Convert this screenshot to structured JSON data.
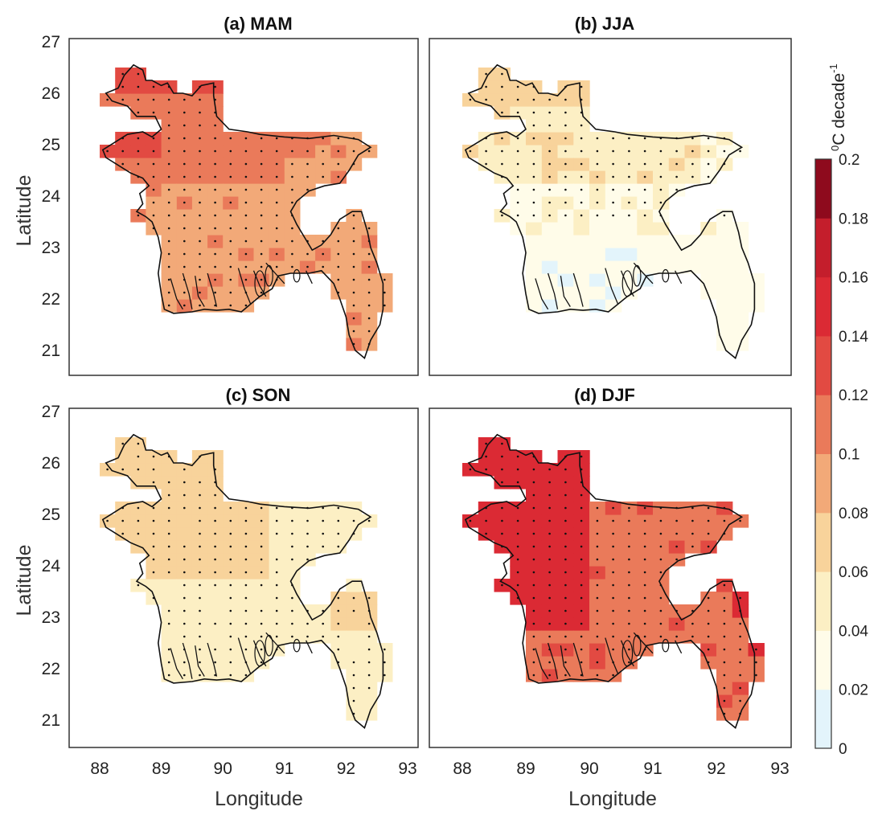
{
  "figure": {
    "xlabel": "Longitude",
    "ylabel": "Latitude",
    "colorbar": {
      "label_base": "0",
      "label_unit": "C decade",
      "label_exp": "-1",
      "ticks": [
        "0",
        "0.02",
        "0.04",
        "0.06",
        "0.08",
        "0.1",
        "0.12",
        "0.14",
        "0.16",
        "0.18",
        "0.2"
      ],
      "colors": [
        "#e3f4fb",
        "#fffce9",
        "#fcefc4",
        "#f8d39b",
        "#f2a978",
        "#ea7a5a",
        "#e24a42",
        "#db2a34",
        "#c41e2c",
        "#8e0a1d"
      ]
    },
    "panels": [
      {
        "title": "(a) MAM",
        "level": 5
      },
      {
        "title": "(b) JJA",
        "level": 2
      },
      {
        "title": "(c) SON",
        "level": 2
      },
      {
        "title": "(d) DJF",
        "level": 6
      }
    ]
  },
  "chart_data": {
    "type": "heatmap",
    "xlabel": "Longitude",
    "ylabel": "Latitude",
    "xticks": [
      88,
      89,
      90,
      91,
      92,
      93
    ],
    "yticks": [
      21,
      22,
      23,
      24,
      25,
      26,
      27
    ],
    "xlim": [
      87.5,
      93
    ],
    "ylim": [
      20.5,
      27
    ],
    "color_range": [
      0,
      0.2
    ],
    "colorbar_unit": "0C decade-1",
    "panels": [
      "(a) MAM",
      "(b) JJA",
      "(c) SON",
      "(d) DJF"
    ]
  }
}
